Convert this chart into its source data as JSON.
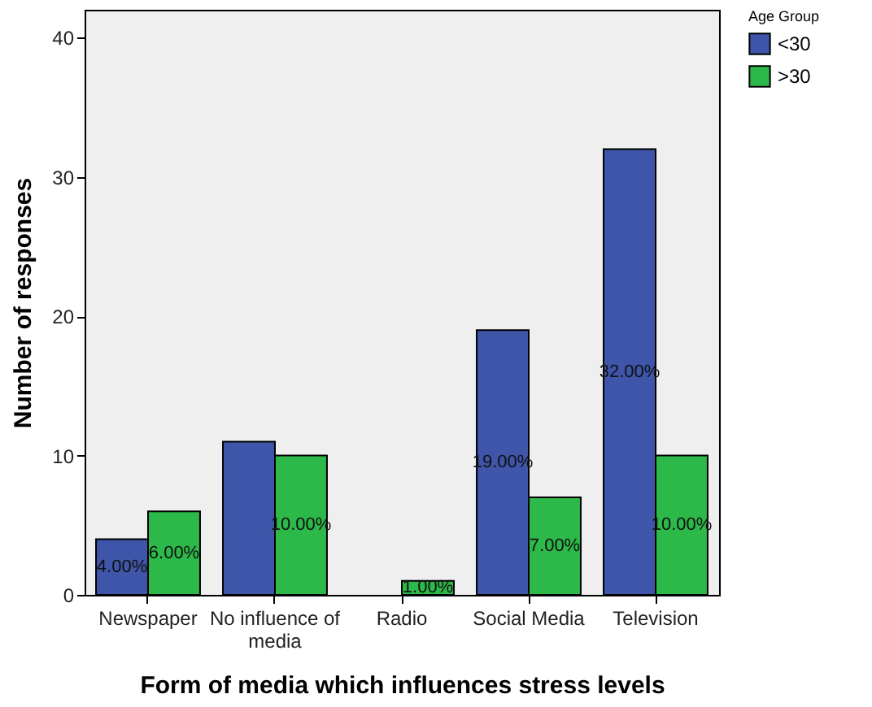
{
  "chart_data": {
    "type": "bar",
    "xlabel": "Form of media which influences stress levels",
    "ylabel": "Number of responses",
    "legend_title": "Age Group",
    "categories": [
      "Newspaper",
      "No influence of media",
      "Radio",
      "Social Media",
      "Television"
    ],
    "series": [
      {
        "name": "<30",
        "color": "#3e55a9",
        "values": [
          4,
          11,
          0,
          19,
          32
        ],
        "value_labels": [
          "4.00%",
          null,
          null,
          "19.00%",
          "32.00%"
        ]
      },
      {
        "name": ">30",
        "color": "#2db84a",
        "values": [
          6,
          10,
          1,
          7,
          10
        ],
        "value_labels": [
          "6.00%",
          "10.00%",
          "1.00%",
          "7.00%",
          "10.00%"
        ]
      }
    ],
    "ylim": [
      0,
      42
    ],
    "yticks": [
      0,
      10,
      20,
      30,
      40
    ],
    "grid": false,
    "legend": "top right"
  }
}
